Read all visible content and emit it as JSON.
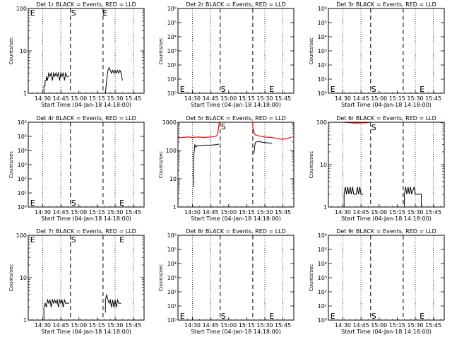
{
  "figure": {
    "x_tick_labels": [
      "14:30",
      "14:45",
      "15:00",
      "15:15",
      "15:30",
      "15:45"
    ],
    "x_label": "Start Time (04-Jan-18 14:18:00)",
    "y_label": "Counts/sec",
    "markers": {
      "start": "S",
      "end": "E",
      "ellipse": "E"
    },
    "colors": {
      "events": "#000000",
      "lld": "#ff0000",
      "background": "#ffffff"
    }
  },
  "chart_data": [
    {
      "type": "line",
      "title": "Det 1r BLACK = Events, RED = LLD",
      "y_scale": "log",
      "ylim": [
        1,
        100
      ],
      "y_tick_labels": [
        "1",
        "10",
        "100"
      ],
      "xlim": [
        "14:18",
        "15:54"
      ],
      "dotted_lines_at": [
        "14:30",
        "14:45",
        "15:30",
        "15:45"
      ],
      "dashed_lines_at": [
        "14:53",
        "15:20"
      ],
      "series": [
        {
          "color": "#000000",
          "segments": [
            [
              [
                "14:31",
                1
              ],
              [
                "14:31",
                1.5
              ],
              [
                "14:32",
                1.5
              ],
              [
                "14:32",
                2
              ],
              [
                "14:33",
                2
              ],
              [
                "14:33",
                2.5
              ],
              [
                "14:34",
                2
              ],
              [
                "14:35",
                3
              ],
              [
                "14:36",
                2.5
              ],
              [
                "14:37",
                3
              ],
              [
                "14:38",
                2
              ],
              [
                "14:39",
                3
              ],
              [
                "14:40",
                2.5
              ],
              [
                "14:41",
                3
              ],
              [
                "14:42",
                2.5
              ],
              [
                "14:43",
                3
              ],
              [
                "14:44",
                2
              ],
              [
                "14:45",
                3
              ],
              [
                "14:46",
                2.5
              ],
              [
                "14:47",
                3
              ],
              [
                "14:48",
                2
              ],
              [
                "14:49",
                3
              ],
              [
                "14:50",
                2.5
              ],
              [
                "14:52",
                2.5
              ]
            ],
            [
              [
                "15:22",
                1
              ],
              [
                "15:23",
                2
              ],
              [
                "15:24",
                3.5
              ],
              [
                "15:25",
                4
              ],
              [
                "15:26",
                3.5
              ],
              [
                "15:27",
                3
              ],
              [
                "15:28",
                3.5
              ],
              [
                "15:29",
                3
              ],
              [
                "15:30",
                3.5
              ],
              [
                "15:31",
                3
              ],
              [
                "15:32",
                3.5
              ],
              [
                "15:33",
                3
              ],
              [
                "15:34",
                3.5
              ],
              [
                "15:35",
                3
              ],
              [
                "15:36",
                2
              ]
            ]
          ]
        }
      ],
      "letters": [
        {
          "text": "E",
          "x": "14:19",
          "y": 100
        },
        {
          "text": "S",
          "x": "14:53",
          "y": 100
        },
        {
          "text": "E",
          "x": "15:19",
          "y": 100
        }
      ]
    },
    {
      "type": "line",
      "title": "Det 2r BLACK = Events, RED = LLD",
      "y_scale": "log",
      "ylim": [
        1,
        1000000
      ],
      "y_tick_labels": [
        "10⁰",
        "10¹",
        "10²",
        "10³",
        "10⁴",
        "10⁵",
        "10⁶"
      ],
      "xlim": [
        "14:18",
        "15:54"
      ],
      "dotted_lines_at": [
        "14:30",
        "14:45",
        "15:30",
        "15:45"
      ],
      "dashed_lines_at": [
        "14:53",
        "15:20"
      ],
      "series": [],
      "letters": [
        {
          "text": "E",
          "x": "14:19",
          "y": 1.5
        },
        {
          "text": "S",
          "x": "14:53",
          "y": 1.5
        },
        {
          "text": "E",
          "x": "15:33",
          "y": 1.5
        }
      ]
    },
    {
      "type": "line",
      "title": "Det 3r BLACK = Events, RED = LLD",
      "y_scale": "log",
      "ylim": [
        1,
        1000000
      ],
      "y_tick_labels": [
        "10⁰",
        "10¹",
        "10²",
        "10³",
        "10⁴",
        "10⁵",
        "10⁶"
      ],
      "xlim": [
        "14:18",
        "15:54"
      ],
      "dotted_lines_at": [
        "14:30",
        "14:45",
        "15:30",
        "15:45"
      ],
      "dashed_lines_at": [
        "14:53",
        "15:20"
      ],
      "series": [],
      "letters": [
        {
          "text": "E",
          "x": "14:19",
          "y": 1.5
        },
        {
          "text": "S",
          "x": "14:53",
          "y": 1.5
        },
        {
          "text": "E",
          "x": "15:33",
          "y": 1.5
        }
      ]
    },
    {
      "type": "line",
      "title": "Det 4r BLACK = Events, RED = LLD",
      "y_scale": "log",
      "ylim": [
        1,
        1000000
      ],
      "y_tick_labels": [
        "10⁰",
        "10¹",
        "10²",
        "10³",
        "10⁴",
        "10⁵",
        "10⁶"
      ],
      "xlim": [
        "14:18",
        "15:54"
      ],
      "dotted_lines_at": [
        "14:30",
        "14:45",
        "15:30",
        "15:45"
      ],
      "dashed_lines_at": [
        "14:53",
        "15:20"
      ],
      "series": [],
      "letters": [
        {
          "text": "E",
          "x": "14:19",
          "y": 1.5
        },
        {
          "text": "S",
          "x": "14:53",
          "y": 1.5
        },
        {
          "text": "E",
          "x": "15:33",
          "y": 1.5
        }
      ]
    },
    {
      "type": "line",
      "title": "Det 5r BLACK = Events, RED = LLD",
      "y_scale": "log",
      "ylim": [
        1,
        1000
      ],
      "y_tick_labels": [
        "1",
        "10",
        "100",
        "1000"
      ],
      "xlim": [
        "14:18",
        "15:54"
      ],
      "dotted_lines_at": [
        "14:30",
        "14:45",
        "15:30",
        "15:45"
      ],
      "dashed_lines_at": [
        "14:53",
        "15:20"
      ],
      "series": [
        {
          "color": "#ff0000",
          "segments": [
            [
              [
                "14:18",
                280
              ],
              [
                "14:22",
                290
              ],
              [
                "14:26",
                300
              ],
              [
                "14:30",
                290
              ],
              [
                "14:35",
                300
              ],
              [
                "14:40",
                290
              ],
              [
                "14:45",
                300
              ],
              [
                "14:48",
                310
              ],
              [
                "14:50",
                330
              ],
              [
                "14:51",
                420
              ],
              [
                "14:52",
                800
              ],
              [
                "14:52",
                1000
              ]
            ],
            [
              [
                "15:20",
                1000
              ],
              [
                "15:20",
                700
              ],
              [
                "15:21",
                450
              ],
              [
                "15:22",
                360
              ],
              [
                "15:25",
                330
              ],
              [
                "15:30",
                300
              ],
              [
                "15:35",
                290
              ],
              [
                "15:40",
                270
              ],
              [
                "15:44",
                250
              ],
              [
                "15:48",
                260
              ],
              [
                "15:52",
                300
              ]
            ]
          ]
        },
        {
          "color": "#000000",
          "segments": [
            [
              [
                "14:31",
                5
              ],
              [
                "14:31",
                60
              ],
              [
                "14:32",
                160
              ],
              [
                "14:33",
                130
              ],
              [
                "14:34",
                150
              ],
              [
                "14:36",
                150
              ],
              [
                "14:40",
                155
              ],
              [
                "14:45",
                155
              ],
              [
                "14:50",
                160
              ],
              [
                "14:52",
                170
              ]
            ],
            [
              [
                "15:21",
                80
              ],
              [
                "15:22",
                190
              ],
              [
                "15:24",
                210
              ],
              [
                "15:27",
                200
              ],
              [
                "15:30",
                190
              ],
              [
                "15:33",
                185
              ],
              [
                "15:36",
                180
              ]
            ]
          ]
        }
      ],
      "letters": [
        {
          "text": "S",
          "x": "14:53",
          "y": 1000
        }
      ]
    },
    {
      "type": "line",
      "title": "Det 6r BLACK = Events, RED = LLD",
      "y_scale": "log",
      "ylim": [
        1,
        100
      ],
      "y_tick_labels": [
        "1",
        "10",
        "100"
      ],
      "xlim": [
        "14:18",
        "15:54"
      ],
      "dotted_lines_at": [
        "14:30",
        "14:45",
        "15:30",
        "15:45"
      ],
      "dashed_lines_at": [
        "14:53",
        "15:20"
      ],
      "series": [
        {
          "color": "#ff0000",
          "segments": [
            [
              [
                "14:31",
                100
              ],
              [
                "14:40",
                96
              ],
              [
                "14:50",
                97
              ],
              [
                "14:52",
                100
              ]
            ],
            [
              [
                "15:51",
                96
              ],
              [
                "15:53",
                100
              ]
            ]
          ]
        },
        {
          "color": "#000000",
          "segments": [
            [
              [
                "14:31",
                1
              ],
              [
                "14:31",
                2
              ],
              [
                "14:32",
                3
              ],
              [
                "14:33",
                2
              ],
              [
                "14:34",
                3
              ],
              [
                "14:35",
                2
              ],
              [
                "14:36",
                3
              ],
              [
                "14:37",
                2
              ],
              [
                "14:38",
                3
              ],
              [
                "14:39",
                2
              ],
              [
                "14:41",
                2
              ],
              [
                "14:42",
                3
              ],
              [
                "14:43",
                2
              ],
              [
                "14:44",
                3
              ],
              [
                "14:45",
                2
              ],
              [
                "14:47",
                2
              ]
            ],
            [
              [
                "15:21",
                1
              ],
              [
                "15:21",
                2
              ],
              [
                "15:22",
                3
              ],
              [
                "15:23",
                2
              ],
              [
                "15:24",
                3
              ],
              [
                "15:25",
                2
              ],
              [
                "15:26",
                3
              ],
              [
                "15:27",
                2
              ],
              [
                "15:29",
                3
              ],
              [
                "15:30",
                2
              ],
              [
                "15:35",
                2
              ],
              [
                "15:35",
                1
              ]
            ]
          ]
        }
      ],
      "letters": [
        {
          "text": "S",
          "x": "14:53",
          "y": 80
        }
      ]
    },
    {
      "type": "line",
      "title": "Det 7r BLACK = Events, RED = LLD",
      "y_scale": "log",
      "ylim": [
        1,
        100
      ],
      "y_tick_labels": [
        "1",
        "10",
        "100"
      ],
      "xlim": [
        "14:18",
        "15:54"
      ],
      "dotted_lines_at": [
        "14:30",
        "14:45",
        "15:30",
        "15:45"
      ],
      "dashed_lines_at": [
        "14:53",
        "15:20"
      ],
      "series": [
        {
          "color": "#000000",
          "segments": [
            [
              [
                "14:31",
                1
              ],
              [
                "14:31",
                2
              ],
              [
                "14:32",
                2.5
              ],
              [
                "14:33",
                2
              ],
              [
                "14:34",
                3
              ],
              [
                "14:35",
                2.5
              ],
              [
                "14:36",
                3
              ],
              [
                "14:37",
                2
              ],
              [
                "14:38",
                3
              ],
              [
                "14:39",
                2.5
              ],
              [
                "14:40",
                3
              ],
              [
                "14:41",
                2.5
              ],
              [
                "14:42",
                3
              ],
              [
                "14:43",
                2
              ],
              [
                "14:44",
                3
              ],
              [
                "14:45",
                2.5
              ],
              [
                "14:46",
                3
              ],
              [
                "14:47",
                2
              ],
              [
                "14:48",
                3
              ],
              [
                "14:49",
                2.5
              ],
              [
                "14:52",
                2.5
              ]
            ],
            [
              [
                "15:22",
                1.5
              ],
              [
                "15:22",
                3
              ],
              [
                "15:23",
                4
              ],
              [
                "15:24",
                3
              ],
              [
                "15:25",
                2.5
              ],
              [
                "15:26",
                3
              ],
              [
                "15:27",
                2
              ],
              [
                "15:28",
                3
              ],
              [
                "15:29",
                2
              ],
              [
                "15:30",
                3
              ],
              [
                "15:31",
                2
              ],
              [
                "15:32",
                3
              ],
              [
                "15:33",
                2.5
              ],
              [
                "15:35",
                2.5
              ]
            ]
          ]
        }
      ],
      "letters": [
        {
          "text": "E",
          "x": "14:19",
          "y": 100
        },
        {
          "text": "S",
          "x": "14:53",
          "y": 100
        },
        {
          "text": "E",
          "x": "15:33",
          "y": 100
        }
      ]
    },
    {
      "type": "line",
      "title": "Det 8r BLACK = Events, RED = LLD",
      "y_scale": "log",
      "ylim": [
        1,
        1000000
      ],
      "y_tick_labels": [
        "10⁰",
        "10¹",
        "10²",
        "10³",
        "10⁴",
        "10⁵",
        "10⁶"
      ],
      "xlim": [
        "14:18",
        "15:54"
      ],
      "dotted_lines_at": [
        "14:30",
        "14:45",
        "15:30",
        "15:45"
      ],
      "dashed_lines_at": [
        "14:53",
        "15:20"
      ],
      "series": [],
      "letters": [
        {
          "text": "E",
          "x": "14:19",
          "y": 1.5
        },
        {
          "text": "S",
          "x": "14:53",
          "y": 1.5
        },
        {
          "text": "E",
          "x": "15:33",
          "y": 1.5
        }
      ]
    },
    {
      "type": "line",
      "title": "Det 9r BLACK = Events, RED = LLD",
      "y_scale": "log",
      "ylim": [
        1,
        1000000
      ],
      "y_tick_labels": [
        "10⁰",
        "10¹",
        "10²",
        "10³",
        "10⁴",
        "10⁵",
        "10⁶"
      ],
      "xlim": [
        "14:18",
        "15:54"
      ],
      "dotted_lines_at": [
        "14:30",
        "14:45",
        "15:30",
        "15:45"
      ],
      "dashed_lines_at": [
        "14:53",
        "15:20"
      ],
      "series": [],
      "letters": [
        {
          "text": "E",
          "x": "14:19",
          "y": 1.5
        },
        {
          "text": "S",
          "x": "14:53",
          "y": 1.5
        },
        {
          "text": "E",
          "x": "15:33",
          "y": 1.5
        }
      ]
    }
  ]
}
